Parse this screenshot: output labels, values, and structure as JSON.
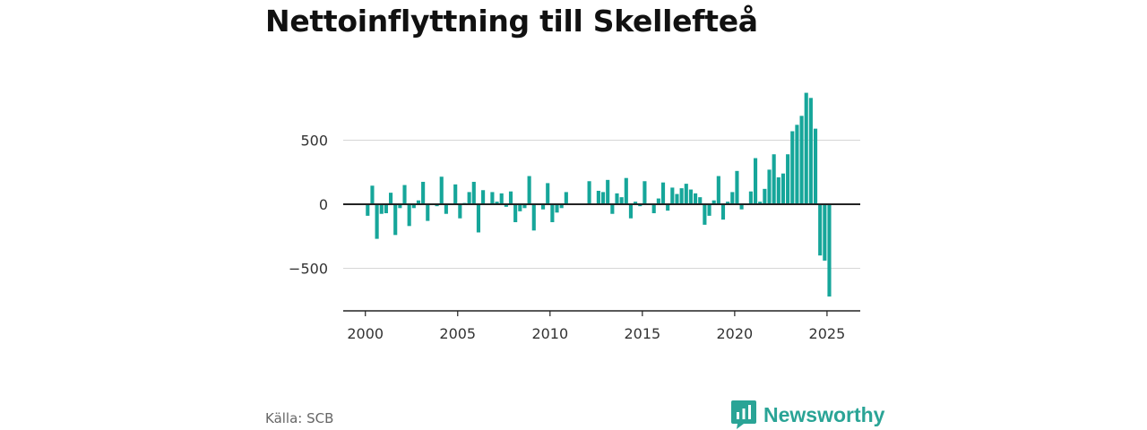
{
  "title": "Nettoinflyttning till Skellefteå",
  "source": "Källa: SCB",
  "brand": {
    "name": "Newsworthy",
    "color": "#2aa496"
  },
  "chart_data": {
    "type": "bar",
    "title": "Nettoinflyttning till Skellefteå",
    "xlabel": "",
    "ylabel": "",
    "bar_color": "#16a69a",
    "grid": true,
    "ylim": [
      -840,
      840
    ],
    "yticks": [
      -500,
      0,
      500
    ],
    "ytick_labels": [
      "−500",
      "0",
      "500"
    ],
    "xlim": [
      1998.8,
      2026.8
    ],
    "xticks": [
      2000,
      2005,
      2010,
      2015,
      2020,
      2025
    ],
    "xtick_labels": [
      "2000",
      "2005",
      "2010",
      "2015",
      "2020",
      "2025"
    ],
    "start_quarter": "2000 Q1",
    "values": [
      -90,
      145,
      -270,
      -75,
      -70,
      90,
      -240,
      -30,
      150,
      -170,
      -30,
      30,
      175,
      -130,
      5,
      -15,
      215,
      -75,
      0,
      155,
      -110,
      10,
      95,
      175,
      -220,
      110,
      5,
      95,
      20,
      85,
      -20,
      100,
      -140,
      -55,
      -30,
      220,
      -205,
      5,
      -40,
      165,
      -140,
      -65,
      -30,
      95,
      0,
      0,
      0,
      0,
      180,
      0,
      105,
      95,
      190,
      -75,
      85,
      55,
      205,
      -110,
      20,
      -15,
      180,
      0,
      -70,
      45,
      170,
      -50,
      130,
      80,
      125,
      160,
      115,
      85,
      55,
      -160,
      -90,
      30,
      220,
      -120,
      20,
      95,
      260,
      -40,
      5,
      100,
      360,
      20,
      120,
      270,
      390,
      210,
      240,
      390,
      570,
      620,
      690,
      870,
      830,
      590,
      -400,
      -440,
      -720
    ]
  }
}
